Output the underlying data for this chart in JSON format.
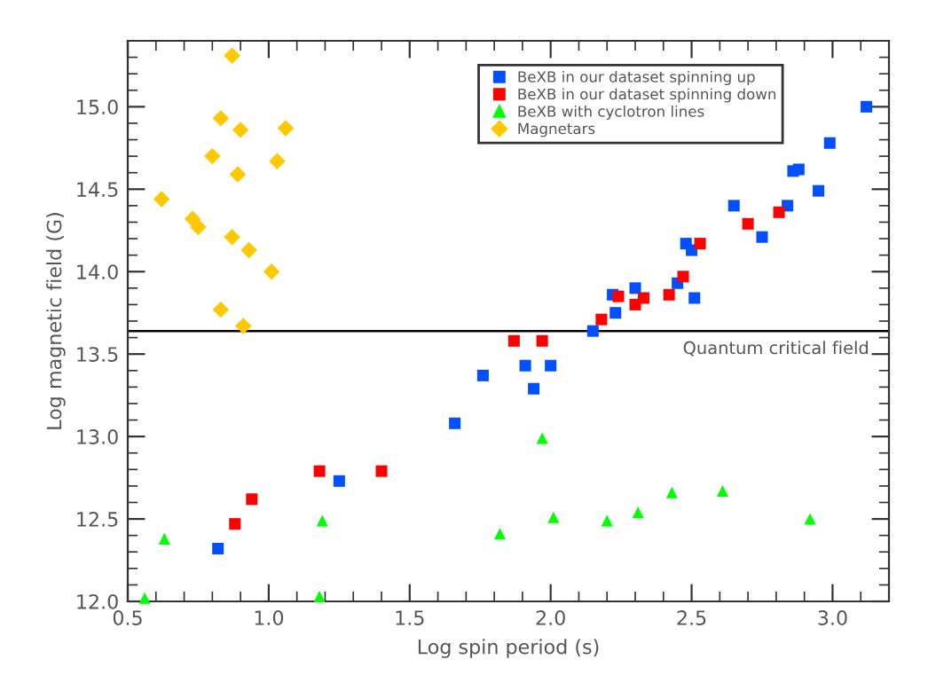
{
  "chart_data": {
    "type": "scatter",
    "xlabel": "Log spin period (s)",
    "ylabel": "Log magnetic field (G)",
    "xlim": [
      0.5,
      3.2
    ],
    "ylim": [
      12.0,
      15.4
    ],
    "xticks": [
      {
        "value": 0.5,
        "label": "0.5"
      },
      {
        "value": 1.0,
        "label": "1.0"
      },
      {
        "value": 1.5,
        "label": "1.5"
      },
      {
        "value": 2.0,
        "label": "2.0"
      },
      {
        "value": 2.5,
        "label": "2.5"
      },
      {
        "value": 3.0,
        "label": "3.0"
      }
    ],
    "yticks": [
      {
        "value": 12.0,
        "label": "12.0"
      },
      {
        "value": 12.5,
        "label": "12.5"
      },
      {
        "value": 13.0,
        "label": "13.0"
      },
      {
        "value": 13.5,
        "label": "13.5"
      },
      {
        "value": 14.0,
        "label": "14.0"
      },
      {
        "value": 14.5,
        "label": "14.5"
      },
      {
        "value": 15.0,
        "label": "15.0"
      }
    ],
    "grid": false,
    "legend": "top right",
    "ref_lines": [
      {
        "axis": "y",
        "value": 13.64,
        "label": "Quantum critical field",
        "color": "#000000",
        "line_style": "solid"
      }
    ],
    "series": [
      {
        "name": "BeXB in our dataset spinning up",
        "color": "#0050ff",
        "marker": "square",
        "x": [
          3.12,
          2.99,
          2.86,
          2.88,
          2.95,
          2.84,
          2.65,
          2.75,
          2.48,
          2.5,
          2.45,
          2.51,
          2.3,
          2.22,
          2.23,
          2.15,
          1.76,
          1.91,
          2.0,
          1.94,
          1.66,
          0.82,
          1.25
        ],
        "values": [
          15.0,
          14.78,
          14.61,
          14.62,
          14.49,
          14.4,
          14.4,
          14.21,
          14.17,
          14.13,
          13.93,
          13.84,
          13.9,
          13.86,
          13.75,
          13.64,
          13.37,
          13.43,
          13.43,
          13.29,
          13.08,
          12.32,
          12.73
        ]
      },
      {
        "name": "BeXB in our dataset spinning down",
        "color": "#ff0000",
        "marker": "square",
        "x": [
          2.24,
          2.3,
          2.33,
          2.42,
          2.47,
          2.53,
          2.7,
          2.81,
          2.18,
          1.87,
          1.97,
          1.18,
          1.4,
          0.94,
          0.88
        ],
        "values": [
          13.85,
          13.8,
          13.84,
          13.86,
          13.97,
          14.17,
          14.29,
          14.36,
          13.71,
          13.58,
          13.58,
          12.79,
          12.79,
          12.62,
          12.47
        ]
      },
      {
        "name": "BeXB with cyclotron lines",
        "color": "#00ff00",
        "marker": "triangle",
        "x": [
          0.56,
          0.63,
          1.19,
          1.18,
          1.82,
          1.97,
          2.01,
          2.2,
          2.31,
          2.43,
          2.61,
          2.92
        ],
        "values": [
          12.02,
          12.38,
          12.49,
          12.03,
          12.41,
          12.99,
          12.51,
          12.49,
          12.54,
          12.66,
          12.67,
          12.5
        ]
      },
      {
        "name": "Magnetars",
        "color": "#ffc800",
        "marker": "diamond",
        "x": [
          0.87,
          0.83,
          0.9,
          1.06,
          0.8,
          1.03,
          0.89,
          0.62,
          0.73,
          0.75,
          0.87,
          0.93,
          1.01,
          0.83,
          0.91
        ],
        "values": [
          15.31,
          14.93,
          14.86,
          14.87,
          14.7,
          14.67,
          14.59,
          14.44,
          14.32,
          14.27,
          14.21,
          14.13,
          14.0,
          13.77,
          13.67
        ]
      }
    ]
  }
}
